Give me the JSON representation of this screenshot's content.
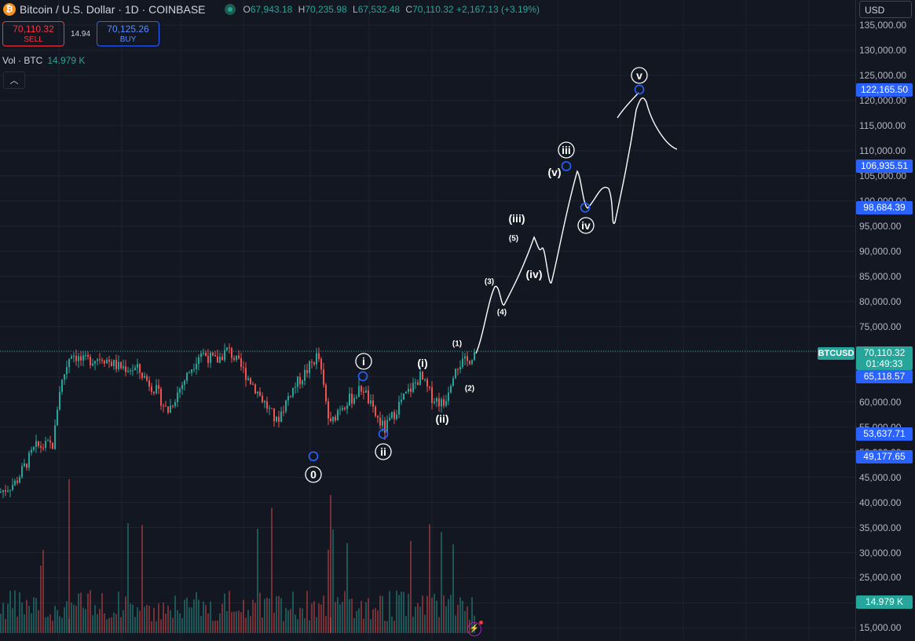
{
  "header": {
    "logo_glyph": "₿",
    "symbol_title": "Bitcoin / U.S. Dollar · 1D · COINBASE",
    "ohlc": {
      "o_label": "O",
      "o": "67,943.18",
      "h_label": "H",
      "h": "70,235.98",
      "l_label": "L",
      "l": "67,532.48",
      "c_label": "C",
      "c": "70,110.32",
      "change": "+2,167.13 (+3.19%)"
    }
  },
  "trade": {
    "sell_price": "70,110.32",
    "sell_label": "SELL",
    "spread": "14.94",
    "buy_price": "70,125.26",
    "buy_label": "BUY"
  },
  "volume": {
    "label": "Vol · BTC",
    "value": "14.979 K"
  },
  "collapse_glyph": "︿",
  "currency": {
    "selected": "USD",
    "arrow": "⌄"
  },
  "price_axis": {
    "ticks": [
      {
        "v": 135000,
        "t": "135,000.00"
      },
      {
        "v": 130000,
        "t": "130,000.00"
      },
      {
        "v": 125000,
        "t": "125,000.00"
      },
      {
        "v": 120000,
        "t": "120,000.00"
      },
      {
        "v": 115000,
        "t": "115,000.00"
      },
      {
        "v": 110000,
        "t": "110,000.00"
      },
      {
        "v": 105000,
        "t": "105,000.00"
      },
      {
        "v": 100000,
        "t": "100,000.00"
      },
      {
        "v": 95000,
        "t": "95,000.00"
      },
      {
        "v": 90000,
        "t": "90,000.00"
      },
      {
        "v": 85000,
        "t": "85,000.00"
      },
      {
        "v": 80000,
        "t": "80,000.00"
      },
      {
        "v": 75000,
        "t": "75,000.00"
      },
      {
        "v": 60000,
        "t": "60,000.00"
      },
      {
        "v": 55000,
        "t": "55,000.00"
      },
      {
        "v": 50000,
        "t": "50,000.00"
      },
      {
        "v": 45000,
        "t": "45,000.00"
      },
      {
        "v": 40000,
        "t": "40,000.00"
      },
      {
        "v": 35000,
        "t": "35,000.00"
      },
      {
        "v": 30000,
        "t": "30,000.00"
      },
      {
        "v": 25000,
        "t": "25,000.00"
      },
      {
        "v": 20000,
        "t": "20,000.00"
      },
      {
        "v": 15000,
        "t": "15,000.00"
      }
    ],
    "tags": [
      {
        "v": 122165.5,
        "t": "122,165.50",
        "color": "#2962ff"
      },
      {
        "v": 106935.51,
        "t": "106,935.51",
        "color": "#2962ff"
      },
      {
        "v": 98684.39,
        "t": "98,684.39",
        "color": "#2962ff"
      },
      {
        "v": 65118.57,
        "t": "65,118.57",
        "color": "#2962ff"
      },
      {
        "v": 53637.71,
        "t": "53,637.71",
        "color": "#2962ff"
      },
      {
        "v": 49177.65,
        "t": "49,177.65",
        "color": "#2962ff"
      }
    ],
    "last_price": "70,110.32",
    "countdown": "01:49:33",
    "symbol_tag": "BTCUSD",
    "volume_tag": "14.979 K"
  },
  "wave_labels": [
    {
      "t": "0",
      "circled": true
    },
    {
      "t": "i",
      "circled": true
    },
    {
      "t": "ii",
      "circled": true
    },
    {
      "t": "(i)",
      "circled": false
    },
    {
      "t": "(ii)",
      "circled": false
    },
    {
      "t": "(1)",
      "circled": false
    },
    {
      "t": "(2)",
      "circled": false
    },
    {
      "t": "(3)",
      "circled": false
    },
    {
      "t": "(4)",
      "circled": false
    },
    {
      "t": "(5)",
      "circled": false
    },
    {
      "t": "(iii)",
      "circled": false
    },
    {
      "t": "(iv)",
      "circled": false
    },
    {
      "t": "(v)",
      "circled": false
    },
    {
      "t": "iii",
      "circled": true
    },
    {
      "t": "iv",
      "circled": true
    },
    {
      "t": "v",
      "circled": true
    }
  ],
  "colors": {
    "up": "#26a69a",
    "down": "#ef5350",
    "marker": "#2962ff",
    "background": "#131722"
  }
}
